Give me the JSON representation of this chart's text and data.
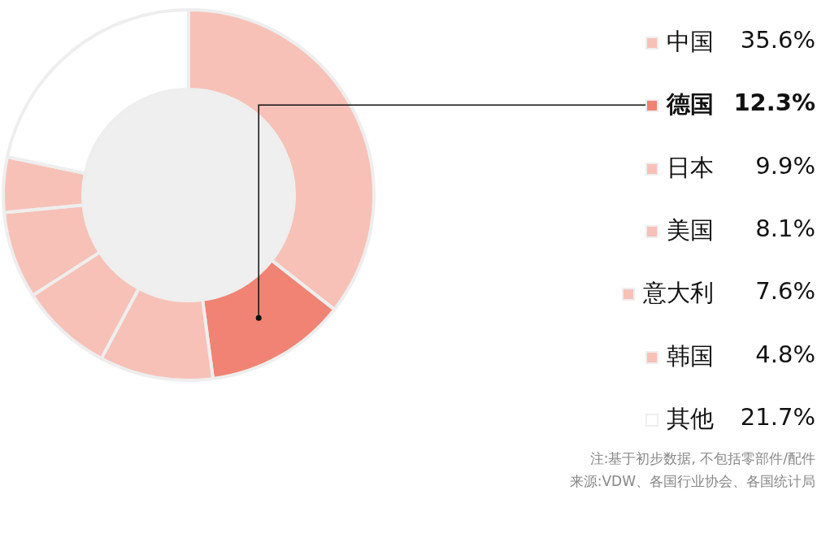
{
  "chart_data": {
    "type": "donut",
    "categories": [
      "中国",
      "德国",
      "日本",
      "美国",
      "意大利",
      "韩国",
      "其他"
    ],
    "values": [
      35.6,
      12.3,
      9.9,
      8.1,
      7.6,
      4.8,
      21.7
    ],
    "value_labels": [
      "35.6%",
      "12.3%",
      "9.9%",
      "8.1%",
      "7.6%",
      "4.8%",
      "21.7%"
    ],
    "legend": "right",
    "colors": [
      "#f7c1b8",
      "#f08373",
      "#f7c1b8",
      "#f7c1b8",
      "#f7c1b8",
      "#f7c1b8",
      "#ffffff"
    ],
    "annotations": [
      "注:基于初步数据, 不包括零部件/配件",
      "来源:VDW、各国行业协会、各国统计局"
    ]
  }
}
